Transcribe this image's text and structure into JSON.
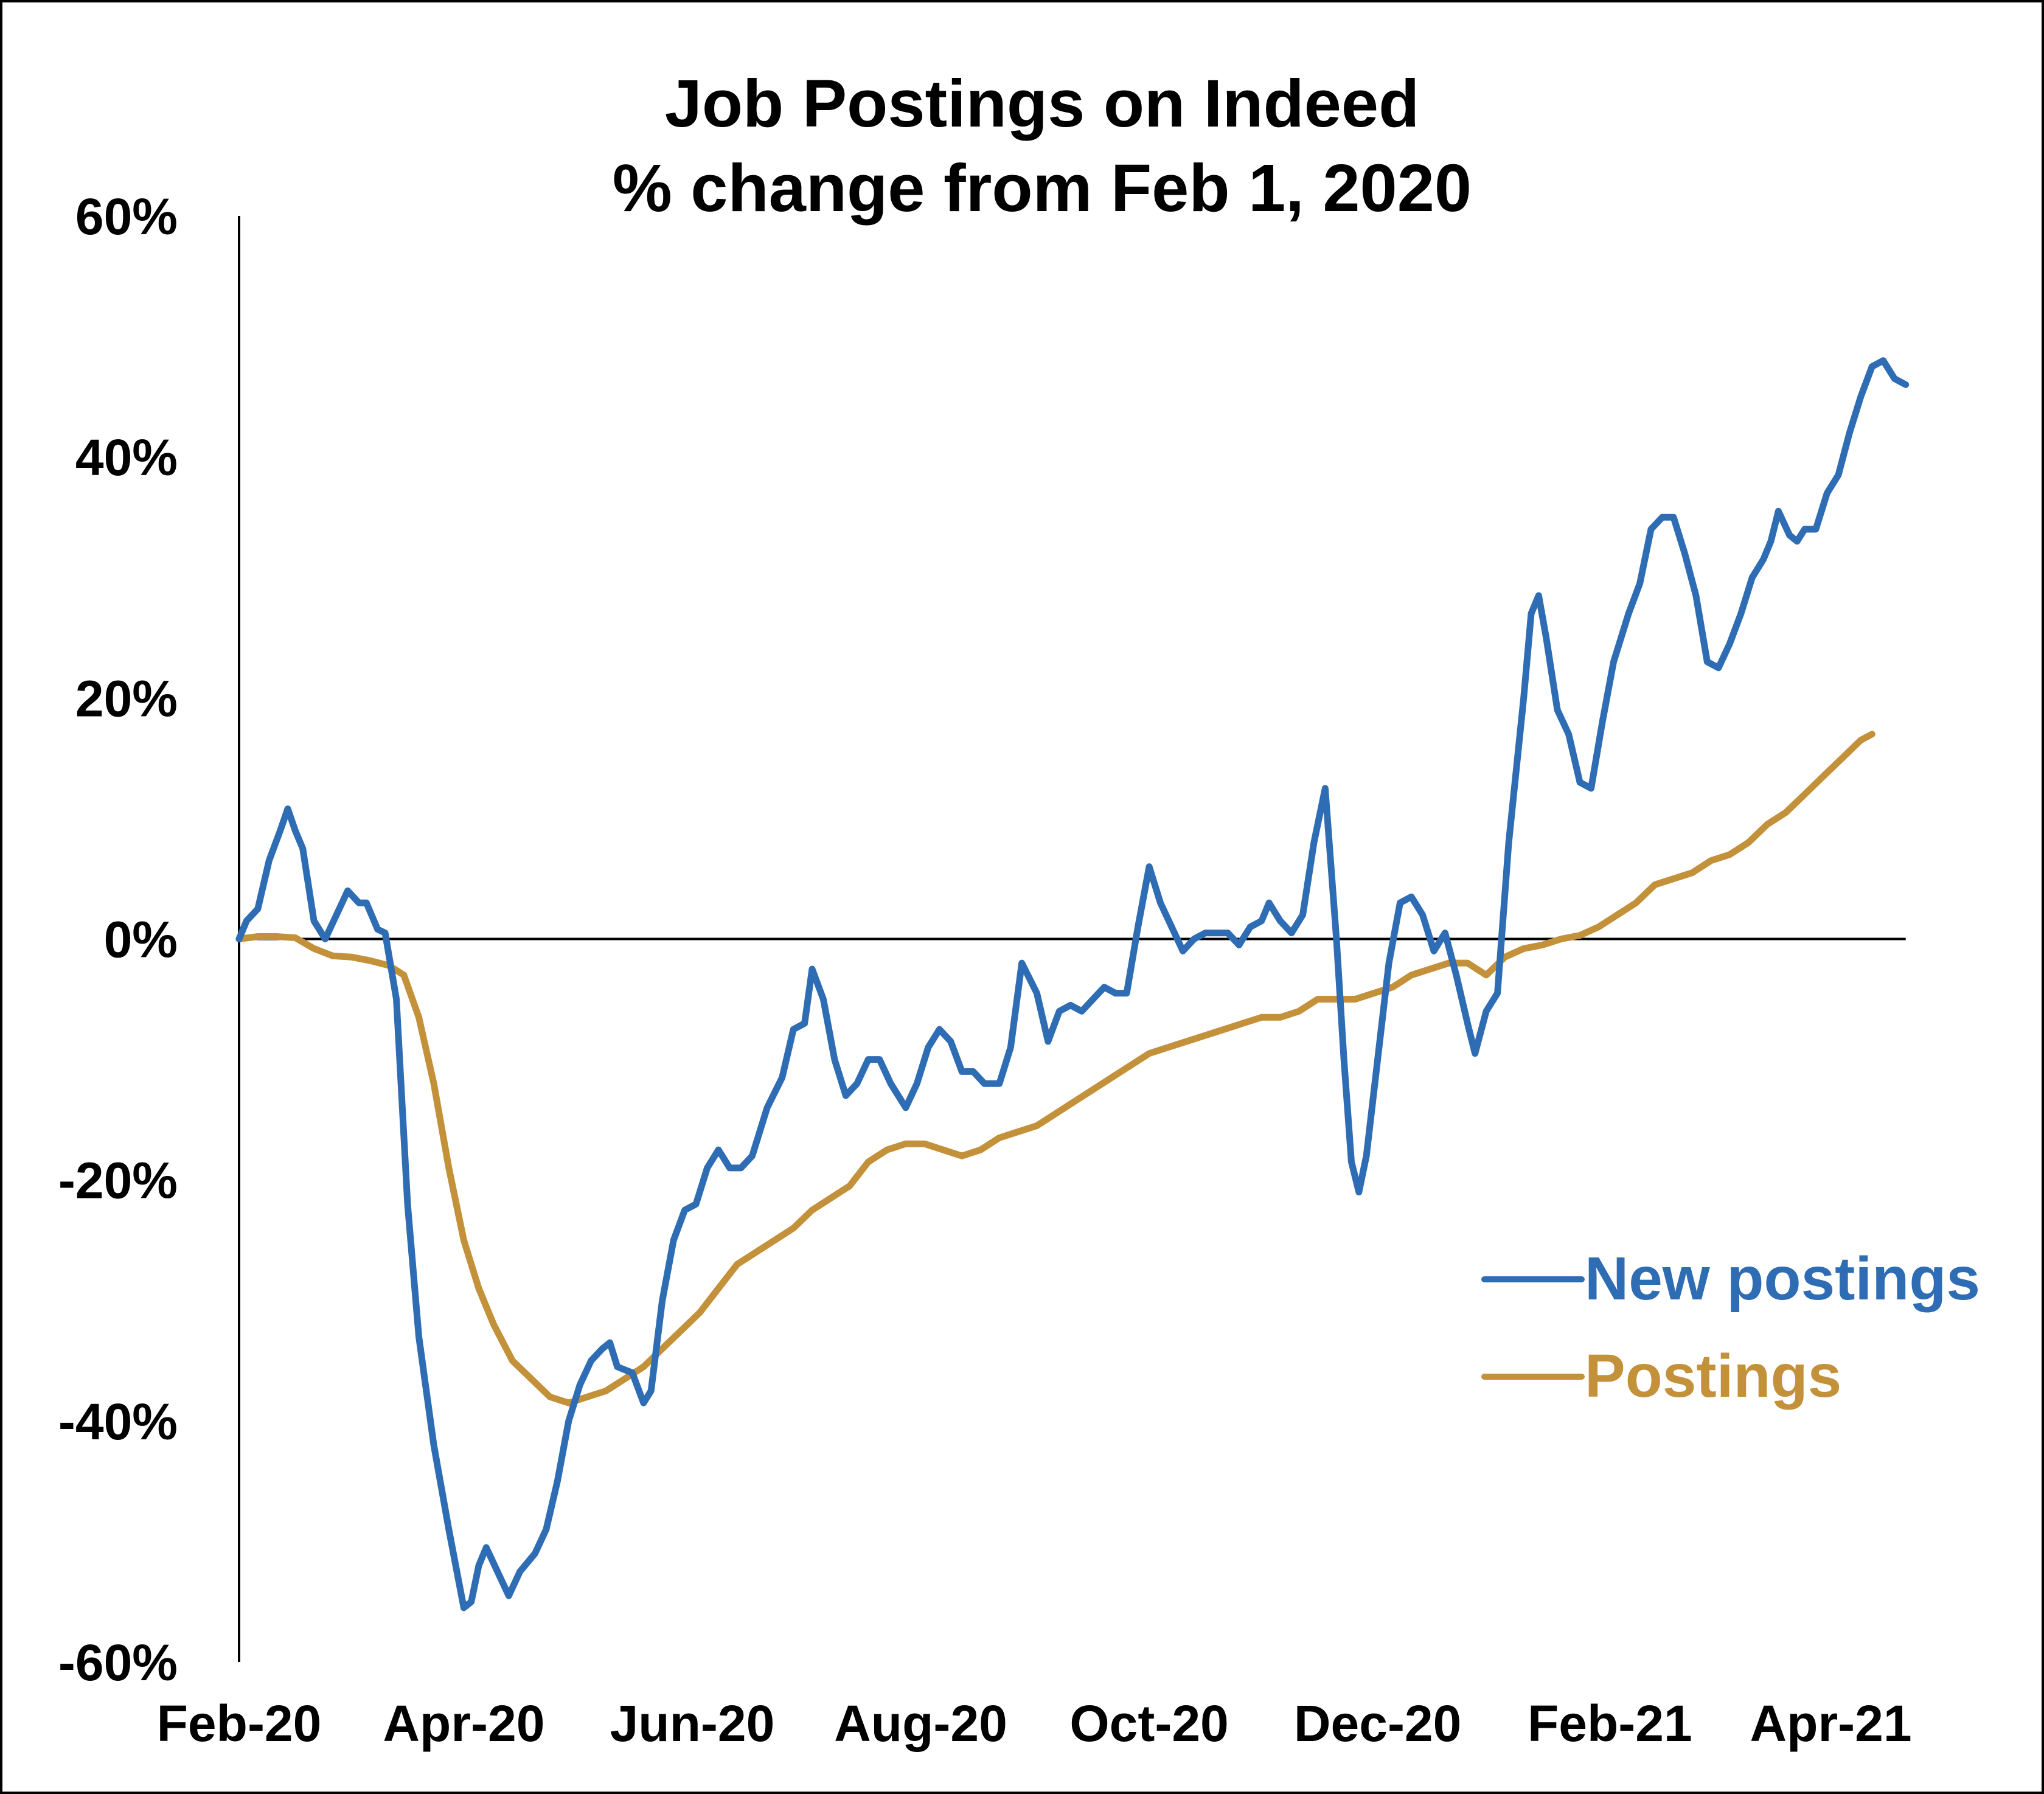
{
  "chart_data": {
    "type": "line",
    "title": "Job Postings on Indeed",
    "subtitle": "% change from Feb 1, 2020",
    "xlabel": "",
    "ylabel": "",
    "x_range": [
      "2020-02-01",
      "2021-04-23"
    ],
    "ylim": [
      -60,
      60
    ],
    "y_ticks": [
      60,
      40,
      20,
      0,
      -20,
      -40,
      -60
    ],
    "y_tick_labels": [
      "60%",
      "40%",
      "20%",
      "0%",
      "-20%",
      "-40%",
      "-60%"
    ],
    "x_tick_labels": [
      "Feb-20",
      "Apr-20",
      "Jun-20",
      "Aug-20",
      "Oct-20",
      "Dec-20",
      "Feb-21",
      "Apr-21"
    ],
    "x_tick_dates": [
      "2020-02-01",
      "2020-04-01",
      "2020-06-01",
      "2020-08-01",
      "2020-10-01",
      "2020-12-01",
      "2021-02-01",
      "2021-04-01"
    ],
    "grid": false,
    "legend_position": "right",
    "zero_line": true,
    "series": [
      {
        "name": "New postings",
        "color": "#2E6DB4",
        "points": [
          [
            "2020-02-01",
            0
          ],
          [
            "2020-02-03",
            1.5
          ],
          [
            "2020-02-06",
            2.5
          ],
          [
            "2020-02-09",
            6.5
          ],
          [
            "2020-02-12",
            9
          ],
          [
            "2020-02-14",
            10.8
          ],
          [
            "2020-02-16",
            9
          ],
          [
            "2020-02-18",
            7.5
          ],
          [
            "2020-02-21",
            1.5
          ],
          [
            "2020-02-24",
            0
          ],
          [
            "2020-02-27",
            2
          ],
          [
            "2020-03-01",
            4
          ],
          [
            "2020-03-04",
            3
          ],
          [
            "2020-03-06",
            3
          ],
          [
            "2020-03-09",
            0.8
          ],
          [
            "2020-03-11",
            0.5
          ],
          [
            "2020-03-14",
            -5
          ],
          [
            "2020-03-17",
            -22
          ],
          [
            "2020-03-20",
            -33
          ],
          [
            "2020-03-24",
            -42
          ],
          [
            "2020-03-28",
            -49
          ],
          [
            "2020-04-01",
            -55.5
          ],
          [
            "2020-04-03",
            -55
          ],
          [
            "2020-04-05",
            -52
          ],
          [
            "2020-04-07",
            -50.5
          ],
          [
            "2020-04-10",
            -52.5
          ],
          [
            "2020-04-13",
            -54.5
          ],
          [
            "2020-04-16",
            -52.5
          ],
          [
            "2020-04-20",
            -51
          ],
          [
            "2020-04-23",
            -49
          ],
          [
            "2020-04-26",
            -45
          ],
          [
            "2020-04-29",
            -40
          ],
          [
            "2020-05-02",
            -37
          ],
          [
            "2020-05-05",
            -35
          ],
          [
            "2020-05-08",
            -34
          ],
          [
            "2020-05-10",
            -33.5
          ],
          [
            "2020-05-12",
            -35.5
          ],
          [
            "2020-05-16",
            -36
          ],
          [
            "2020-05-19",
            -38.5
          ],
          [
            "2020-05-21",
            -37.5
          ],
          [
            "2020-05-24",
            -30
          ],
          [
            "2020-05-27",
            -25
          ],
          [
            "2020-05-30",
            -22.5
          ],
          [
            "2020-06-02",
            -22
          ],
          [
            "2020-06-05",
            -19
          ],
          [
            "2020-06-08",
            -17.5
          ],
          [
            "2020-06-11",
            -19
          ],
          [
            "2020-06-14",
            -19
          ],
          [
            "2020-06-17",
            -18
          ],
          [
            "2020-06-21",
            -14
          ],
          [
            "2020-06-25",
            -11.5
          ],
          [
            "2020-06-28",
            -7.5
          ],
          [
            "2020-07-01",
            -7
          ],
          [
            "2020-07-03",
            -2.5
          ],
          [
            "2020-07-06",
            -5
          ],
          [
            "2020-07-09",
            -10
          ],
          [
            "2020-07-12",
            -13
          ],
          [
            "2020-07-15",
            -12
          ],
          [
            "2020-07-18",
            -10
          ],
          [
            "2020-07-21",
            -10
          ],
          [
            "2020-07-24",
            -12
          ],
          [
            "2020-07-28",
            -14
          ],
          [
            "2020-07-31",
            -12
          ],
          [
            "2020-08-03",
            -9
          ],
          [
            "2020-08-06",
            -7.5
          ],
          [
            "2020-08-09",
            -8.5
          ],
          [
            "2020-08-12",
            -11
          ],
          [
            "2020-08-15",
            -11
          ],
          [
            "2020-08-18",
            -12
          ],
          [
            "2020-08-22",
            -12
          ],
          [
            "2020-08-25",
            -9
          ],
          [
            "2020-08-28",
            -2
          ],
          [
            "2020-09-01",
            -4.5
          ],
          [
            "2020-09-04",
            -8.5
          ],
          [
            "2020-09-07",
            -6
          ],
          [
            "2020-09-10",
            -5.5
          ],
          [
            "2020-09-13",
            -6
          ],
          [
            "2020-09-16",
            -5
          ],
          [
            "2020-09-19",
            -4
          ],
          [
            "2020-09-22",
            -4.5
          ],
          [
            "2020-09-25",
            -4.5
          ],
          [
            "2020-09-28",
            1
          ],
          [
            "2020-10-01",
            6
          ],
          [
            "2020-10-04",
            3
          ],
          [
            "2020-10-07",
            1
          ],
          [
            "2020-10-10",
            -1
          ],
          [
            "2020-10-13",
            0
          ],
          [
            "2020-10-16",
            0.5
          ],
          [
            "2020-10-19",
            0.5
          ],
          [
            "2020-10-22",
            0.5
          ],
          [
            "2020-10-25",
            -0.5
          ],
          [
            "2020-10-28",
            1
          ],
          [
            "2020-10-31",
            1.5
          ],
          [
            "2020-11-02",
            3
          ],
          [
            "2020-11-05",
            1.5
          ],
          [
            "2020-11-08",
            0.5
          ],
          [
            "2020-11-11",
            2
          ],
          [
            "2020-11-14",
            8
          ],
          [
            "2020-11-17",
            12.5
          ],
          [
            "2020-11-20",
            0
          ],
          [
            "2020-11-22",
            -10
          ],
          [
            "2020-11-24",
            -18.5
          ],
          [
            "2020-11-26",
            -21
          ],
          [
            "2020-11-28",
            -18
          ],
          [
            "2020-12-01",
            -10
          ],
          [
            "2020-12-04",
            -2
          ],
          [
            "2020-12-07",
            3
          ],
          [
            "2020-12-10",
            3.5
          ],
          [
            "2020-12-13",
            2
          ],
          [
            "2020-12-16",
            -1
          ],
          [
            "2020-12-19",
            0.5
          ],
          [
            "2020-12-22",
            -3
          ],
          [
            "2020-12-25",
            -7
          ],
          [
            "2020-12-27",
            -9.5
          ],
          [
            "2020-12-30",
            -6
          ],
          [
            "2021-01-02",
            -4.5
          ],
          [
            "2021-01-05",
            8
          ],
          [
            "2021-01-09",
            20
          ],
          [
            "2021-01-11",
            27
          ],
          [
            "2021-01-13",
            28.5
          ],
          [
            "2021-01-15",
            25
          ],
          [
            "2021-01-18",
            19
          ],
          [
            "2021-01-21",
            17
          ],
          [
            "2021-01-24",
            13
          ],
          [
            "2021-01-27",
            12.5
          ],
          [
            "2021-01-30",
            18
          ],
          [
            "2021-02-02",
            23
          ],
          [
            "2021-02-06",
            27
          ],
          [
            "2021-02-09",
            29.5
          ],
          [
            "2021-02-12",
            34
          ],
          [
            "2021-02-15",
            35
          ],
          [
            "2021-02-18",
            35
          ],
          [
            "2021-02-21",
            32
          ],
          [
            "2021-02-24",
            28.5
          ],
          [
            "2021-02-27",
            23
          ],
          [
            "2021-03-02",
            22.5
          ],
          [
            "2021-03-05",
            24.5
          ],
          [
            "2021-03-08",
            27
          ],
          [
            "2021-03-11",
            30
          ],
          [
            "2021-03-14",
            31.5
          ],
          [
            "2021-03-16",
            33
          ],
          [
            "2021-03-18",
            35.5
          ],
          [
            "2021-03-21",
            33.5
          ],
          [
            "2021-03-23",
            33
          ],
          [
            "2021-03-25",
            34
          ],
          [
            "2021-03-28",
            34
          ],
          [
            "2021-03-31",
            37
          ],
          [
            "2021-04-03",
            38.5
          ],
          [
            "2021-04-06",
            42
          ],
          [
            "2021-04-09",
            45
          ],
          [
            "2021-04-12",
            47.5
          ],
          [
            "2021-04-15",
            48
          ],
          [
            "2021-04-18",
            46.5
          ],
          [
            "2021-04-21",
            46
          ]
        ]
      },
      {
        "name": "Postings",
        "color": "#C4913B",
        "points": [
          [
            "2020-02-01",
            0
          ],
          [
            "2020-02-06",
            0.2
          ],
          [
            "2020-02-11",
            0.2
          ],
          [
            "2020-02-16",
            0.1
          ],
          [
            "2020-02-21",
            -0.8
          ],
          [
            "2020-02-26",
            -1.4
          ],
          [
            "2020-03-02",
            -1.5
          ],
          [
            "2020-03-07",
            -1.8
          ],
          [
            "2020-03-12",
            -2.2
          ],
          [
            "2020-03-16",
            -3
          ],
          [
            "2020-03-20",
            -6.5
          ],
          [
            "2020-03-24",
            -12
          ],
          [
            "2020-03-28",
            -19
          ],
          [
            "2020-04-01",
            -25
          ],
          [
            "2020-04-05",
            -29
          ],
          [
            "2020-04-09",
            -32
          ],
          [
            "2020-04-14",
            -35
          ],
          [
            "2020-04-19",
            -36.5
          ],
          [
            "2020-04-24",
            -38
          ],
          [
            "2020-04-29",
            -38.5
          ],
          [
            "2020-05-04",
            -38
          ],
          [
            "2020-05-09",
            -37.5
          ],
          [
            "2020-05-14",
            -36.5
          ],
          [
            "2020-05-19",
            -35.5
          ],
          [
            "2020-05-24",
            -34
          ],
          [
            "2020-05-29",
            -32.5
          ],
          [
            "2020-06-03",
            -31
          ],
          [
            "2020-06-08",
            -29
          ],
          [
            "2020-06-13",
            -27
          ],
          [
            "2020-06-18",
            -26
          ],
          [
            "2020-06-23",
            -25
          ],
          [
            "2020-06-28",
            -24
          ],
          [
            "2020-07-03",
            -22.5
          ],
          [
            "2020-07-08",
            -21.5
          ],
          [
            "2020-07-13",
            -20.5
          ],
          [
            "2020-07-18",
            -18.5
          ],
          [
            "2020-07-23",
            -17.5
          ],
          [
            "2020-07-28",
            -17
          ],
          [
            "2020-08-02",
            -17
          ],
          [
            "2020-08-07",
            -17.5
          ],
          [
            "2020-08-12",
            -18
          ],
          [
            "2020-08-17",
            -17.5
          ],
          [
            "2020-08-22",
            -16.5
          ],
          [
            "2020-08-27",
            -16
          ],
          [
            "2020-09-01",
            -15.5
          ],
          [
            "2020-09-06",
            -14.5
          ],
          [
            "2020-09-11",
            -13.5
          ],
          [
            "2020-09-16",
            -12.5
          ],
          [
            "2020-09-21",
            -11.5
          ],
          [
            "2020-09-26",
            -10.5
          ],
          [
            "2020-10-01",
            -9.5
          ],
          [
            "2020-10-06",
            -9
          ],
          [
            "2020-10-11",
            -8.5
          ],
          [
            "2020-10-16",
            -8
          ],
          [
            "2020-10-21",
            -7.5
          ],
          [
            "2020-10-26",
            -7
          ],
          [
            "2020-10-31",
            -6.5
          ],
          [
            "2020-11-05",
            -6.5
          ],
          [
            "2020-11-10",
            -6
          ],
          [
            "2020-11-15",
            -5
          ],
          [
            "2020-11-20",
            -5
          ],
          [
            "2020-11-25",
            -5
          ],
          [
            "2020-11-30",
            -4.5
          ],
          [
            "2020-12-05",
            -4
          ],
          [
            "2020-12-10",
            -3
          ],
          [
            "2020-12-15",
            -2.5
          ],
          [
            "2020-12-20",
            -2
          ],
          [
            "2020-12-25",
            -2
          ],
          [
            "2020-12-30",
            -3
          ],
          [
            "2021-01-04",
            -1.5
          ],
          [
            "2021-01-09",
            -0.8
          ],
          [
            "2021-01-14",
            -0.5
          ],
          [
            "2021-01-19",
            0
          ],
          [
            "2021-01-24",
            0.3
          ],
          [
            "2021-01-29",
            1
          ],
          [
            "2021-02-03",
            2
          ],
          [
            "2021-02-08",
            3
          ],
          [
            "2021-02-13",
            4.5
          ],
          [
            "2021-02-18",
            5
          ],
          [
            "2021-02-23",
            5.5
          ],
          [
            "2021-02-28",
            6.5
          ],
          [
            "2021-03-05",
            7
          ],
          [
            "2021-03-10",
            8
          ],
          [
            "2021-03-15",
            9.5
          ],
          [
            "2021-03-20",
            10.5
          ],
          [
            "2021-03-25",
            12
          ],
          [
            "2021-03-30",
            13.5
          ],
          [
            "2021-04-04",
            15
          ],
          [
            "2021-04-09",
            16.5
          ],
          [
            "2021-04-12",
            17
          ]
        ]
      }
    ]
  }
}
